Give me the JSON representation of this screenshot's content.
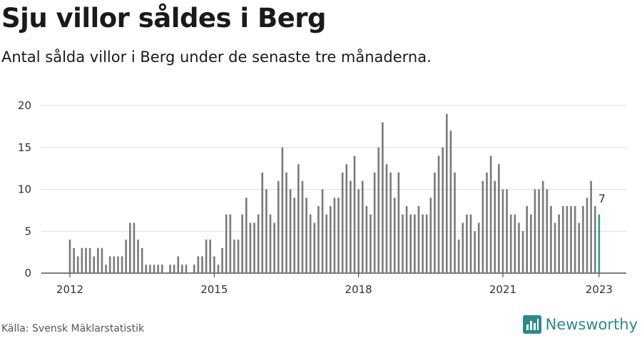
{
  "title": "Sju villor såldes i Berg",
  "subtitle": "Antal sålda villor i Berg under de senaste tre månaderna.",
  "source": "Källa: Svensk Mäklarstatistik",
  "brand": {
    "name": "Newsworthy",
    "logo_icon": "bar-chart-logo-icon",
    "color": "#2a8a8a"
  },
  "colors": {
    "bar": "#7a7a7a",
    "highlight": "#2a9d8f",
    "grid": "#dddddd"
  },
  "chart_data": {
    "type": "bar",
    "x_tick_labels": [
      "2012",
      "2015",
      "2018",
      "2021",
      "2023"
    ],
    "y_tick_labels": [
      "0",
      "5",
      "10",
      "15",
      "20"
    ],
    "ylim": [
      0,
      20
    ],
    "start_month": "2012-01",
    "values": [
      4,
      3,
      2,
      3,
      3,
      3,
      2,
      3,
      3,
      1,
      2,
      2,
      2,
      2,
      4,
      6,
      6,
      4,
      3,
      1,
      1,
      1,
      1,
      1,
      0,
      1,
      1,
      2,
      1,
      1,
      0,
      1,
      2,
      2,
      4,
      4,
      2,
      1,
      3,
      7,
      7,
      4,
      4,
      7,
      9,
      6,
      6,
      7,
      12,
      10,
      7,
      6,
      11,
      15,
      12,
      10,
      9,
      13,
      11,
      9,
      7,
      6,
      8,
      10,
      7,
      8,
      9,
      9,
      12,
      13,
      11,
      14,
      10,
      11,
      8,
      7,
      12,
      15,
      18,
      13,
      12,
      9,
      12,
      7,
      8,
      7,
      7,
      8,
      7,
      7,
      9,
      12,
      14,
      15,
      19,
      17,
      12,
      4,
      6,
      7,
      7,
      5,
      6,
      11,
      12,
      14,
      11,
      13,
      10,
      10,
      7,
      7,
      6,
      5,
      8,
      7,
      10,
      10,
      11,
      10,
      8,
      6,
      7,
      8,
      8,
      8,
      8,
      6,
      8,
      9,
      11,
      8,
      7
    ],
    "highlight_last": true,
    "last_value_label": "7",
    "grid": true
  }
}
